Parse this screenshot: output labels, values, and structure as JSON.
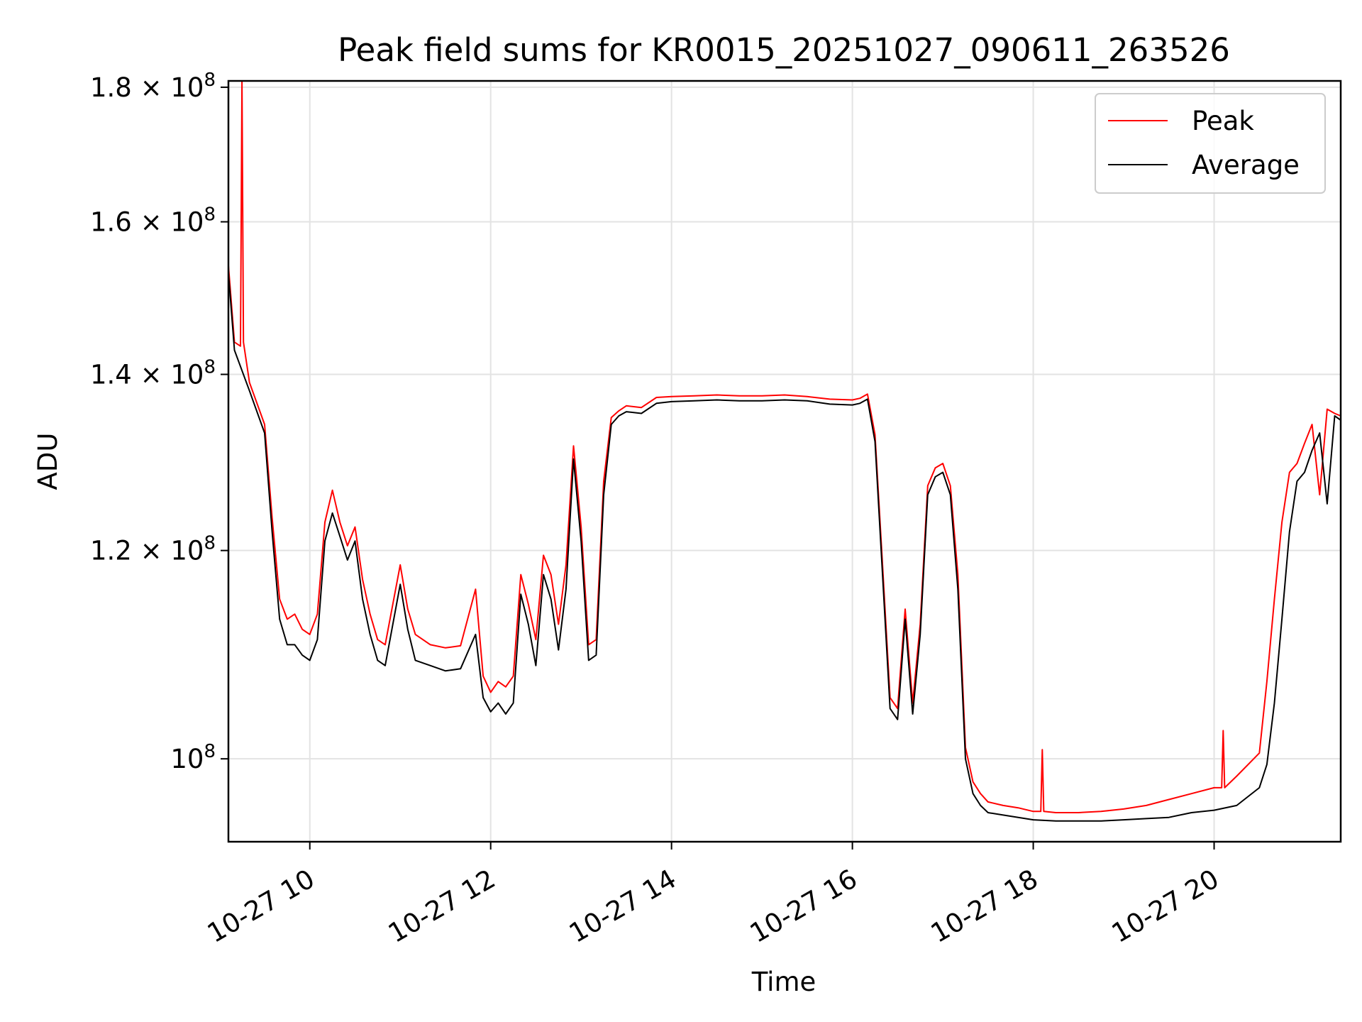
{
  "chart_data": {
    "type": "line",
    "title": "Peak field sums for KR0015_20251027_090611_263526",
    "xlabel": "Time",
    "ylabel": "ADU",
    "xlim": [
      "2025-10-27T09:06",
      "2025-10-27T21:24"
    ],
    "ylim": [
      93000000,
      181000000
    ],
    "yscale": "log",
    "grid": true,
    "legend": {
      "position": "top-right",
      "entries": [
        "Peak",
        "Average"
      ]
    },
    "x_ticks": [
      "10-27 10",
      "10-27 12",
      "10-27 14",
      "10-27 16",
      "10-27 18",
      "10-27 20"
    ],
    "y_ticks": [
      {
        "base": "10",
        "exp": "8",
        "mantissa": ""
      },
      {
        "base": "10",
        "exp": "8",
        "mantissa": "1.2 × "
      },
      {
        "base": "10",
        "exp": "8",
        "mantissa": "1.4 × "
      },
      {
        "base": "10",
        "exp": "8",
        "mantissa": "1.6 × "
      },
      {
        "base": "10",
        "exp": "8",
        "mantissa": "1.8 × "
      }
    ],
    "series": [
      {
        "name": "Average",
        "color": "#000000",
        "x": [
          "09:06",
          "09:10",
          "09:20",
          "09:30",
          "09:35",
          "09:40",
          "09:45",
          "09:50",
          "09:55",
          "10:00",
          "10:05",
          "10:10",
          "10:15",
          "10:20",
          "10:25",
          "10:30",
          "10:35",
          "10:40",
          "10:45",
          "10:50",
          "11:00",
          "11:05",
          "11:10",
          "11:20",
          "11:30",
          "11:40",
          "11:50",
          "11:55",
          "12:00",
          "12:05",
          "12:10",
          "12:15",
          "12:20",
          "12:25",
          "12:30",
          "12:35",
          "12:40",
          "12:45",
          "12:50",
          "12:55",
          "13:00",
          "13:05",
          "13:10",
          "13:15",
          "13:20",
          "13:25",
          "13:30",
          "13:40",
          "13:50",
          "14:00",
          "14:15",
          "14:30",
          "14:45",
          "15:00",
          "15:15",
          "15:30",
          "15:45",
          "16:00",
          "16:05",
          "16:10",
          "16:15",
          "16:20",
          "16:25",
          "16:30",
          "16:35",
          "16:40",
          "16:45",
          "16:50",
          "16:55",
          "17:00",
          "17:05",
          "17:10",
          "17:15",
          "17:20",
          "17:25",
          "17:30",
          "17:40",
          "17:50",
          "18:00",
          "18:15",
          "18:30",
          "18:45",
          "19:00",
          "19:15",
          "19:30",
          "19:45",
          "20:00",
          "20:15",
          "20:30",
          "20:35",
          "20:40",
          "20:45",
          "20:50",
          "20:55",
          "21:00",
          "21:05",
          "21:10",
          "21:15",
          "21:20",
          "21:24"
        ],
        "y": [
          153000000,
          143000000,
          138000000,
          133000000,
          122000000,
          113000000,
          110500000,
          110500000,
          109500000,
          109000000,
          111000000,
          121000000,
          124000000,
          121500000,
          119000000,
          121000000,
          115000000,
          111500000,
          109000000,
          108500000,
          116500000,
          112000000,
          109000000,
          108500000,
          108000000,
          108200000,
          111500000,
          105500000,
          104200000,
          105000000,
          104000000,
          105000000,
          115500000,
          112500000,
          108500000,
          117500000,
          115000000,
          110000000,
          116000000,
          130000000,
          121000000,
          109000000,
          109500000,
          126000000,
          134000000,
          135000000,
          135500000,
          135300000,
          136500000,
          136700000,
          136800000,
          136900000,
          136800000,
          136800000,
          136900000,
          136800000,
          136400000,
          136300000,
          136500000,
          137000000,
          132000000,
          117500000,
          104500000,
          103500000,
          113000000,
          104000000,
          111500000,
          126000000,
          128000000,
          128500000,
          126000000,
          116000000,
          100000000,
          97000000,
          96000000,
          95400000,
          95200000,
          95000000,
          94800000,
          94700000,
          94700000,
          94700000,
          94800000,
          94900000,
          95000000,
          95400000,
          95600000,
          96000000,
          97500000,
          99500000,
          105000000,
          113000000,
          122000000,
          127500000,
          128500000,
          131000000,
          133000000,
          125000000,
          135000000,
          134500000
        ]
      },
      {
        "name": "Peak",
        "color": "#ff0000",
        "x": [
          "09:06",
          "09:10",
          "09:14",
          "09:15",
          "09:16",
          "09:20",
          "09:30",
          "09:35",
          "09:40",
          "09:45",
          "09:50",
          "09:55",
          "10:00",
          "10:05",
          "10:10",
          "10:15",
          "10:20",
          "10:25",
          "10:30",
          "10:35",
          "10:40",
          "10:45",
          "10:50",
          "11:00",
          "11:05",
          "11:10",
          "11:20",
          "11:30",
          "11:40",
          "11:50",
          "11:55",
          "12:00",
          "12:05",
          "12:10",
          "12:15",
          "12:20",
          "12:25",
          "12:30",
          "12:35",
          "12:40",
          "12:45",
          "12:50",
          "12:55",
          "13:00",
          "13:05",
          "13:10",
          "13:15",
          "13:20",
          "13:25",
          "13:30",
          "13:40",
          "13:50",
          "14:00",
          "14:15",
          "14:30",
          "14:45",
          "15:00",
          "15:15",
          "15:30",
          "15:45",
          "16:00",
          "16:05",
          "16:10",
          "16:15",
          "16:20",
          "16:25",
          "16:30",
          "16:35",
          "16:40",
          "16:45",
          "16:50",
          "16:55",
          "17:00",
          "17:05",
          "17:10",
          "17:15",
          "17:20",
          "17:25",
          "17:30",
          "17:40",
          "17:50",
          "18:00",
          "18:05",
          "18:06",
          "18:07",
          "18:15",
          "18:30",
          "18:45",
          "19:00",
          "19:15",
          "19:30",
          "19:45",
          "20:00",
          "20:05",
          "20:06",
          "20:07",
          "20:15",
          "20:30",
          "20:35",
          "20:40",
          "20:45",
          "20:50",
          "20:55",
          "21:00",
          "21:05",
          "21:10",
          "21:15",
          "21:20",
          "21:24"
        ],
        "y": [
          154000000,
          144000000,
          143500000,
          181000000,
          144000000,
          139000000,
          134000000,
          123500000,
          115000000,
          113000000,
          113500000,
          112000000,
          111500000,
          113500000,
          123000000,
          126500000,
          123000000,
          120500000,
          122500000,
          117000000,
          113500000,
          111000000,
          110500000,
          118500000,
          114000000,
          111500000,
          110500000,
          110200000,
          110400000,
          116000000,
          107500000,
          106000000,
          107000000,
          106500000,
          107500000,
          117500000,
          114500000,
          111000000,
          119500000,
          117500000,
          112500000,
          118500000,
          131500000,
          122500000,
          110500000,
          111000000,
          127500000,
          134800000,
          135600000,
          136200000,
          136000000,
          137200000,
          137300000,
          137400000,
          137500000,
          137400000,
          137400000,
          137500000,
          137300000,
          137000000,
          136900000,
          137100000,
          137600000,
          132800000,
          118500000,
          105500000,
          104500000,
          114000000,
          105000000,
          112500000,
          127000000,
          129000000,
          129500000,
          127000000,
          117500000,
          101000000,
          98000000,
          97000000,
          96300000,
          96000000,
          95800000,
          95500000,
          95500000,
          100800000,
          95500000,
          95400000,
          95400000,
          95500000,
          95700000,
          96000000,
          96500000,
          97000000,
          97500000,
          97500000,
          102500000,
          97500000,
          98500000,
          100500000,
          107000000,
          115000000,
          123000000,
          128500000,
          129500000,
          131800000,
          134000000,
          126000000,
          135800000,
          135300000,
          135000000
        ]
      }
    ]
  }
}
